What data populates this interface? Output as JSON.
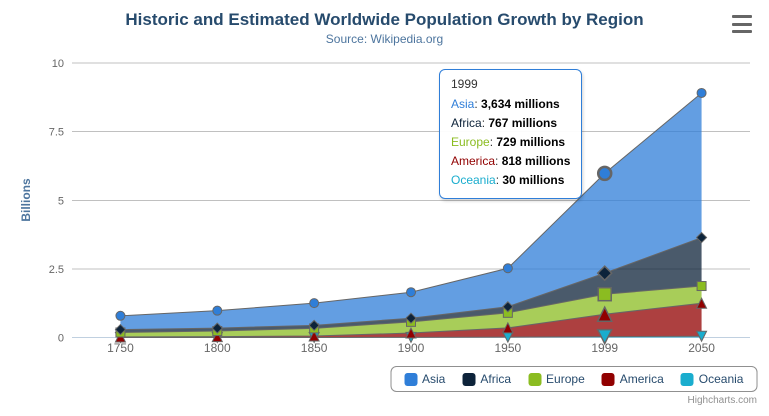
{
  "header": {
    "title": "Historic and Estimated Worldwide Population Growth by Region",
    "subtitle": "Source: Wikipedia.org"
  },
  "chart_data": {
    "type": "area",
    "stacking": "normal",
    "title": "Historic and Estimated Worldwide Population Growth by Region",
    "subtitle": "Source: Wikipedia.org",
    "xlabel": "",
    "ylabel": "Billions",
    "ylim": [
      0,
      10
    ],
    "yticks": [
      0,
      2.5,
      5,
      7.5,
      10
    ],
    "ytick_labels": [
      "0",
      "2.5",
      "5",
      "7.5",
      "10"
    ],
    "categories": [
      "1750",
      "1800",
      "1850",
      "1900",
      "1950",
      "1999",
      "2050"
    ],
    "values_unit": "millions",
    "grid": true,
    "legend_position": "bottom-center",
    "hover_category_index": 5,
    "stack_order_bottom_to_top": [
      "Oceania",
      "America",
      "Europe",
      "Africa",
      "Asia"
    ],
    "series": [
      {
        "name": "Asia",
        "color": "#2f7ed8",
        "marker": "circle",
        "values": [
          502,
          635,
          809,
          947,
          1402,
          3634,
          5268
        ]
      },
      {
        "name": "Africa",
        "color": "#0d233a",
        "marker": "diamond",
        "values": [
          106,
          107,
          111,
          133,
          221,
          767,
          1766
        ]
      },
      {
        "name": "Europe",
        "color": "#8bbc21",
        "marker": "square",
        "values": [
          163,
          203,
          276,
          408,
          547,
          729,
          628
        ]
      },
      {
        "name": "America",
        "color": "#910000",
        "marker": "triangle",
        "values": [
          18,
          31,
          54,
          156,
          339,
          818,
          1201
        ]
      },
      {
        "name": "Oceania",
        "color": "#1aadce",
        "marker": "triangle-down",
        "values": [
          2,
          2,
          2,
          6,
          13,
          30,
          46
        ]
      }
    ]
  },
  "tooltip": {
    "header": "1999",
    "separator": ": ",
    "rows": [
      {
        "name": "Asia",
        "value": "3,634 millions",
        "color": "#2f7ed8"
      },
      {
        "name": "Africa",
        "value": "767 millions",
        "color": "#0d233a"
      },
      {
        "name": "Europe",
        "value": "729 millions",
        "color": "#8bbc21"
      },
      {
        "name": "America",
        "value": "818 millions",
        "color": "#910000"
      },
      {
        "name": "Oceania",
        "value": "30 millions",
        "color": "#1aadce"
      }
    ]
  },
  "legend": {
    "items": [
      {
        "label": "Asia",
        "color": "#2f7ed8"
      },
      {
        "label": "Africa",
        "color": "#0d233a"
      },
      {
        "label": "Europe",
        "color": "#8bbc21"
      },
      {
        "label": "America",
        "color": "#910000"
      },
      {
        "label": "Oceania",
        "color": "#1aadce"
      }
    ]
  },
  "credits": {
    "label": "Highcharts.com"
  },
  "colors": {
    "title": "#274b6d",
    "subtitle": "#4d759e",
    "axis_labels": "#666666",
    "grid_line": "#c0c0c0",
    "axis_line": "#c0d0e0",
    "series_outline": "#666666",
    "legend_border": "#909090",
    "tooltip_border": "#2f7ed8",
    "fill_opacity": 0.75
  }
}
